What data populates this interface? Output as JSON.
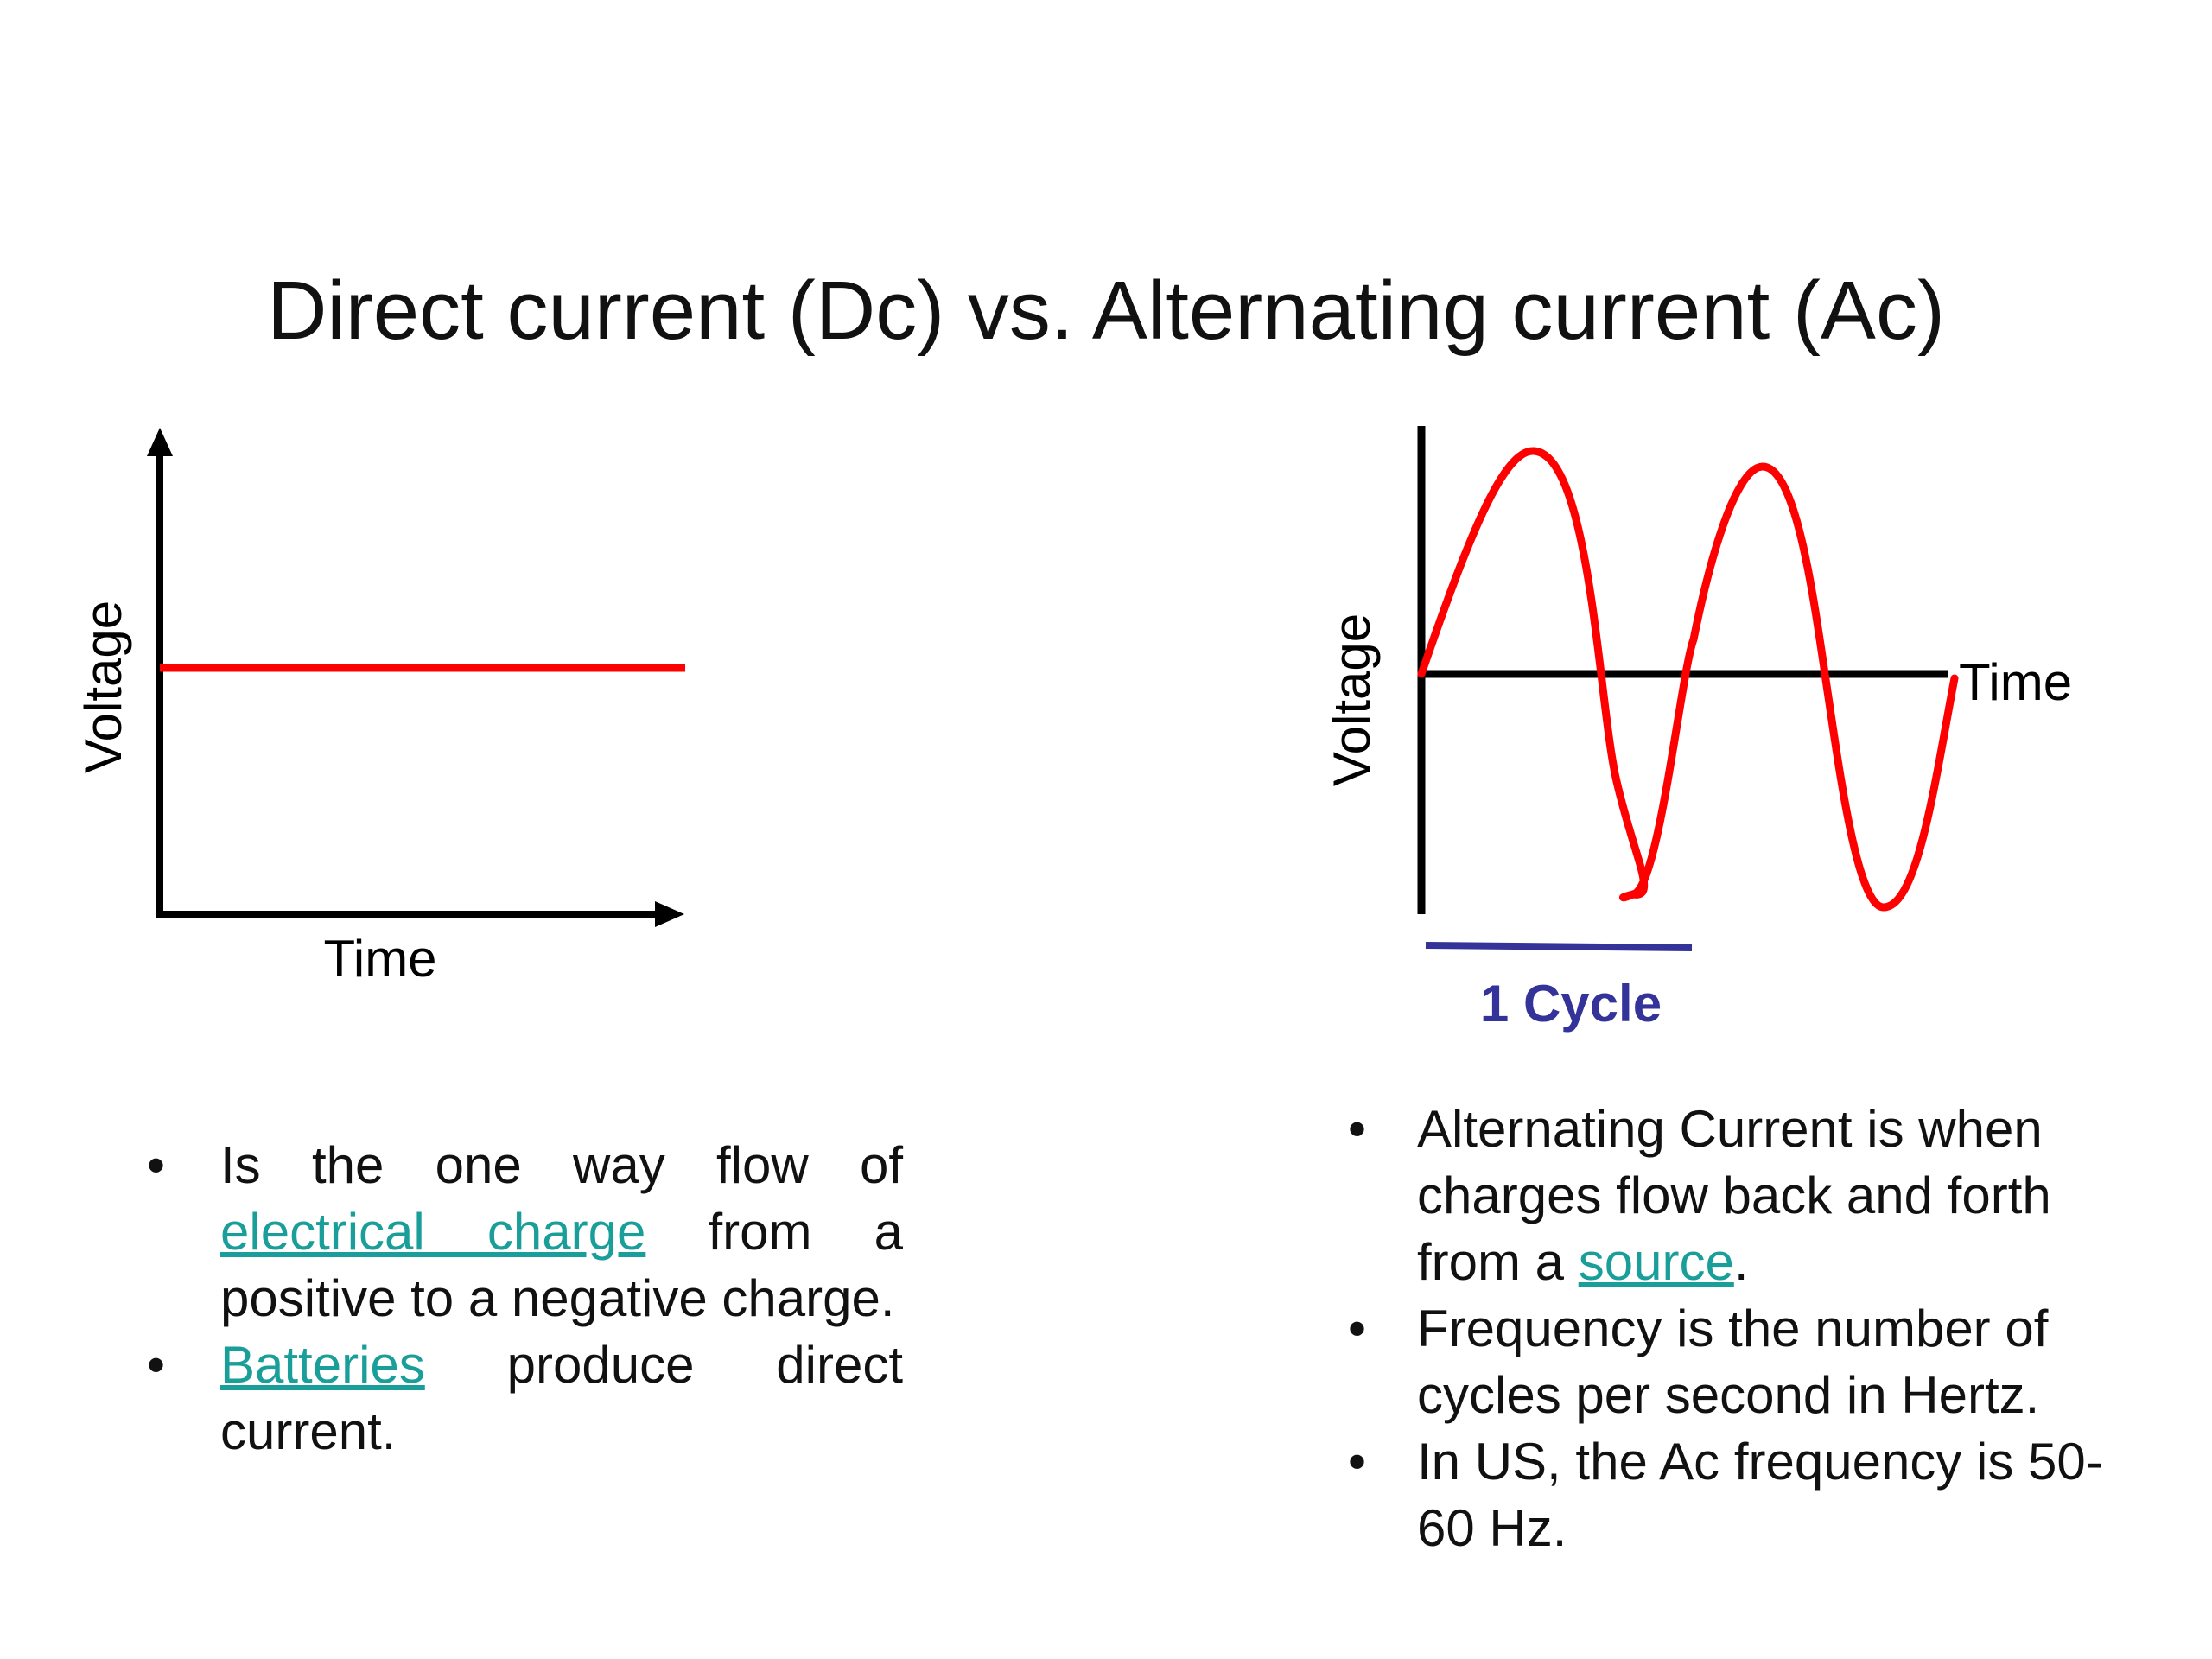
{
  "title": "Direct current (Dc) vs. Alternating current (Ac)",
  "dc_chart": {
    "ylabel": "Voltage",
    "xlabel": "Time",
    "line_color": "#ff0000",
    "axis_color": "#000000"
  },
  "ac_chart": {
    "ylabel": "Voltage",
    "xlabel": "Time",
    "cycle_label": "1 Cycle",
    "wave_color": "#ff0000",
    "cycle_color": "#333399",
    "axis_color": "#000000"
  },
  "dc_bullets": {
    "b1": {
      "before": "Is the one way flow of ",
      "link": "electrical charge",
      "after": " from a positive to a negative charge."
    },
    "b2": {
      "link": "Batteries",
      "after": " produce direct current."
    }
  },
  "ac_bullets": {
    "b1": {
      "before": "Alternating Current is when charges flow back and forth from a ",
      "link": "source",
      "after": "."
    },
    "b2": {
      "text": "Frequency is the number of cycles per second in Hertz."
    },
    "b3": {
      "text": "In US, the Ac frequency is 50-60 Hz."
    }
  },
  "bullet_glyph": "•",
  "link_color": "#1a9e9a"
}
